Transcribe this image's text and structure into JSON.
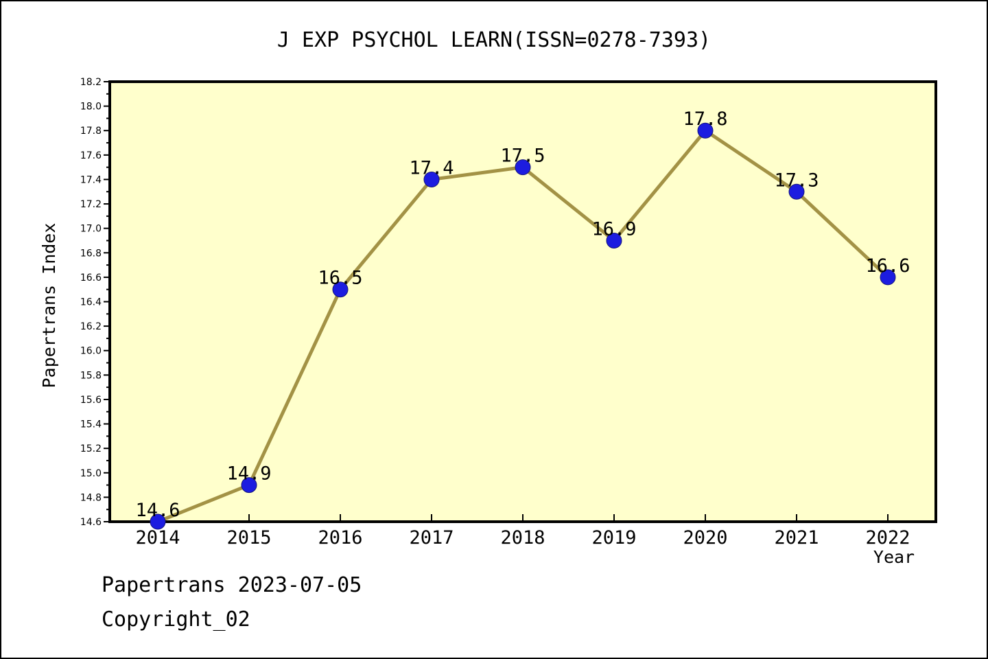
{
  "figure": {
    "footer_line1": "Papertrans 2023-07-05",
    "footer_line2": "Copyright_02"
  },
  "chart_data": {
    "type": "line",
    "title": "J EXP PSYCHOL LEARN(ISSN=0278-7393)",
    "xlabel": "Year",
    "ylabel": "Papertrans Index",
    "categories": [
      "2014",
      "2015",
      "2016",
      "2017",
      "2018",
      "2019",
      "2020",
      "2021",
      "2022"
    ],
    "series": [
      {
        "name": "Papertrans Index",
        "values": [
          14.6,
          14.9,
          16.5,
          17.4,
          17.5,
          16.9,
          17.8,
          17.3,
          16.6
        ]
      }
    ],
    "point_labels": [
      "14.6",
      "14.9",
      "16.5",
      "17.4",
      "17.5",
      "16.9",
      "17.8",
      "17.3",
      "16.6"
    ],
    "ylim": [
      14.6,
      18.2
    ],
    "ytick_major_step": 0.2,
    "ytick_minor_step": 0.1,
    "grid": false,
    "legend_position": "none",
    "colors": {
      "line": "#A39245",
      "marker": "#1C1CE0",
      "marker_edge": "#15157A",
      "plot_background": "#FFFFCC",
      "figure_background": "#FFFFFF",
      "axis": "#000000",
      "text": "#000000"
    }
  }
}
